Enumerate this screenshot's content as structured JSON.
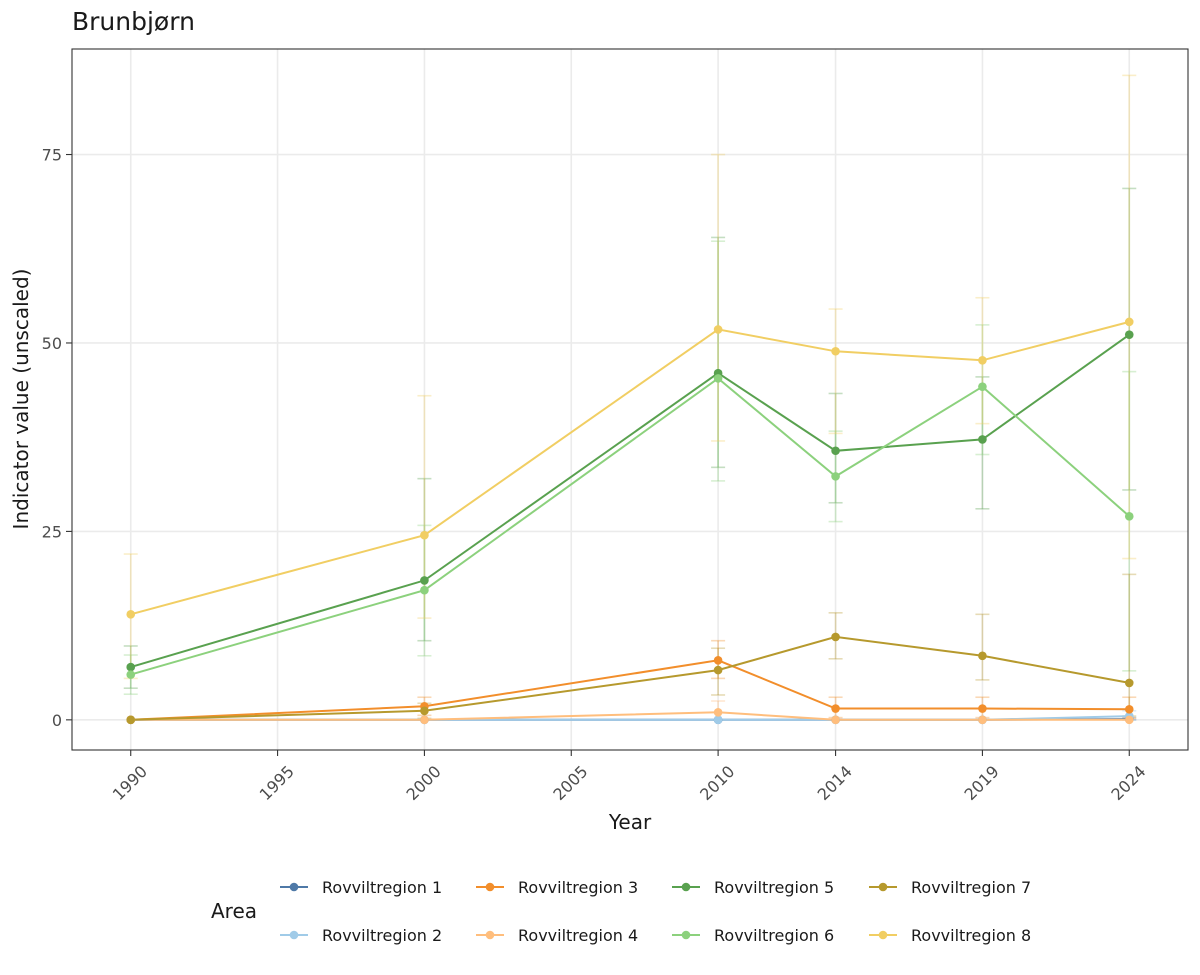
{
  "chart_data": {
    "type": "line",
    "title": "Brunbjørn",
    "xlabel": "Year",
    "ylabel": "Indicator value (unscaled)",
    "xlim": [
      1988,
      2026
    ],
    "ylim": [
      -4,
      89
    ],
    "x_ticks": [
      1990,
      1995,
      2000,
      2005,
      2010,
      2014,
      2019,
      2024
    ],
    "y_ticks": [
      0,
      25,
      50,
      75
    ],
    "x_tick_labels": [
      "1990",
      "1995",
      "2000",
      "2005",
      "2010",
      "2014",
      "2019",
      "2024"
    ],
    "y_tick_labels": [
      "0",
      "25",
      "50",
      "75"
    ],
    "grid": true,
    "x_grid_lines": [
      1990,
      1995,
      2000,
      2005,
      2010,
      2014,
      2019,
      2024
    ],
    "y_grid_lines": [
      0,
      25,
      50,
      75
    ],
    "legend": {
      "title": "Area",
      "placement": "bottom"
    },
    "x": [
      1990,
      2000,
      2010,
      2014,
      2019,
      2024
    ],
    "series": [
      {
        "name": "Rovviltregion 1",
        "color": "#4E79A7",
        "values": [
          0,
          0,
          0,
          0,
          0,
          0.1
        ],
        "lower": [
          0,
          0,
          0,
          0,
          0,
          0
        ],
        "upper": [
          0,
          0,
          0,
          0,
          0,
          0.3
        ]
      },
      {
        "name": "Rovviltregion 2",
        "color": "#A0CBE8",
        "values": [
          0,
          0,
          0,
          0,
          0,
          0.5
        ],
        "lower": [
          0,
          0,
          0,
          0,
          0,
          0
        ],
        "upper": [
          0,
          0,
          0,
          0,
          0,
          1.2
        ]
      },
      {
        "name": "Rovviltregion 3",
        "color": "#F28E2B",
        "values": [
          0,
          1.8,
          7.9,
          1.5,
          1.5,
          1.4
        ],
        "lower": [
          0,
          0.6,
          5.5,
          0.3,
          0.3,
          0.2
        ],
        "upper": [
          0,
          3,
          10.5,
          3,
          3,
          3
        ]
      },
      {
        "name": "Rovviltregion 4",
        "color": "#FFBE7D",
        "values": [
          0,
          0,
          1,
          0,
          0,
          0
        ],
        "lower": [
          0,
          0,
          0,
          0,
          0,
          0
        ],
        "upper": [
          0,
          0,
          2.5,
          0,
          0,
          0
        ]
      },
      {
        "name": "Rovviltregion 5",
        "color": "#59A14F",
        "values": [
          7,
          18.5,
          46,
          35.7,
          37.2,
          51.1
        ],
        "lower": [
          4.2,
          10.5,
          33.5,
          28.8,
          28,
          30.5
        ],
        "upper": [
          9.8,
          32,
          64,
          43.3,
          45.5,
          70.5
        ]
      },
      {
        "name": "Rovviltregion 6",
        "color": "#8CD17D",
        "values": [
          6,
          17.2,
          45.3,
          32.3,
          44.2,
          27
        ],
        "lower": [
          3.4,
          8.5,
          31.7,
          26.3,
          35.2,
          6.5
        ],
        "upper": [
          8.6,
          25.8,
          63.5,
          38.3,
          52.4,
          46.2
        ]
      },
      {
        "name": "Rovviltregion 7",
        "color": "#B6992D",
        "values": [
          0,
          1.2,
          6.6,
          11,
          8.5,
          4.9
        ],
        "lower": [
          0,
          0.2,
          3.3,
          8.1,
          5.3,
          0.5
        ],
        "upper": [
          0,
          2.2,
          9.5,
          14.2,
          14,
          19.3
        ]
      },
      {
        "name": "Rovviltregion 8",
        "color": "#F1CE63",
        "values": [
          14,
          24.5,
          51.8,
          48.9,
          47.7,
          52.8
        ],
        "lower": [
          5.5,
          13.5,
          37,
          38,
          39.3,
          21.4
        ],
        "upper": [
          22,
          43,
          75,
          54.5,
          56,
          85.5
        ]
      }
    ]
  }
}
